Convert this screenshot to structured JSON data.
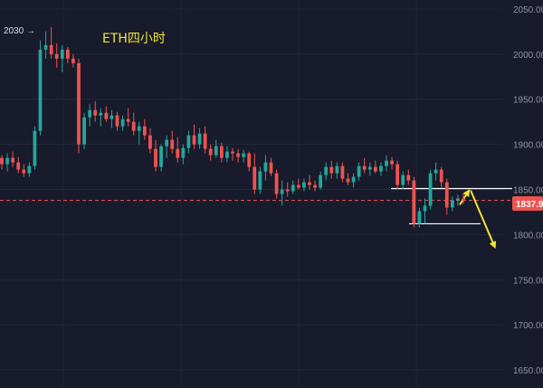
{
  "chart_data": {
    "type": "candlestick",
    "title": "ETH四小时",
    "y_axis_position": "right",
    "ylim": [
      1630,
      2060
    ],
    "y_ticks": [
      "2050.00",
      "2000.00",
      "1950.00",
      "1900.00",
      "1850.00",
      "1800.00",
      "1750.00",
      "1700.00",
      "1650.00"
    ],
    "high_marker": {
      "label": "2030 →",
      "value": 2030
    },
    "current_price": {
      "label": "1837.9",
      "value": 1837.9
    },
    "annotations": {
      "resistance_level": 1851,
      "support_level": 1812,
      "arrows": [
        "up",
        "down"
      ]
    },
    "colors": {
      "up": "#26a69a",
      "down": "#ef5350",
      "title": "#f4e235",
      "price_line": "#ef5350",
      "background": "#171b2b"
    },
    "candles": [
      [
        1885,
        1888,
        1872,
        1878
      ],
      [
        1878,
        1890,
        1870,
        1885
      ],
      [
        1885,
        1892,
        1875,
        1880
      ],
      [
        1880,
        1886,
        1868,
        1872
      ],
      [
        1872,
        1878,
        1864,
        1868
      ],
      [
        1868,
        1880,
        1864,
        1876
      ],
      [
        1876,
        1920,
        1872,
        1915
      ],
      [
        1915,
        2015,
        1910,
        2005
      ],
      [
        2005,
        2025,
        1995,
        2010
      ],
      [
        2010,
        2030,
        1995,
        2000
      ],
      [
        2000,
        2012,
        1985,
        1995
      ],
      [
        1995,
        2010,
        1980,
        2005
      ],
      [
        2005,
        2008,
        1990,
        1995
      ],
      [
        1995,
        2000,
        1985,
        1990
      ],
      [
        1990,
        1995,
        1890,
        1900
      ],
      [
        1900,
        1935,
        1895,
        1930
      ],
      [
        1930,
        1945,
        1920,
        1938
      ],
      [
        1938,
        1948,
        1925,
        1932
      ],
      [
        1932,
        1940,
        1920,
        1935
      ],
      [
        1935,
        1942,
        1925,
        1928
      ],
      [
        1928,
        1938,
        1918,
        1932
      ],
      [
        1932,
        1936,
        1915,
        1920
      ],
      [
        1920,
        1932,
        1915,
        1928
      ],
      [
        1928,
        1940,
        1920,
        1925
      ],
      [
        1925,
        1935,
        1910,
        1915
      ],
      [
        1915,
        1925,
        1900,
        1920
      ],
      [
        1920,
        1928,
        1905,
        1910
      ],
      [
        1910,
        1918,
        1890,
        1895
      ],
      [
        1895,
        1905,
        1870,
        1875
      ],
      [
        1875,
        1900,
        1870,
        1898
      ],
      [
        1898,
        1910,
        1885,
        1905
      ],
      [
        1905,
        1915,
        1890,
        1895
      ],
      [
        1895,
        1908,
        1880,
        1885
      ],
      [
        1885,
        1900,
        1878,
        1896
      ],
      [
        1896,
        1915,
        1890,
        1910
      ],
      [
        1910,
        1922,
        1895,
        1900
      ],
      [
        1900,
        1918,
        1895,
        1912
      ],
      [
        1912,
        1920,
        1890,
        1895
      ],
      [
        1895,
        1900,
        1882,
        1888
      ],
      [
        1888,
        1905,
        1885,
        1898
      ],
      [
        1898,
        1902,
        1880,
        1885
      ],
      [
        1885,
        1898,
        1880,
        1892
      ],
      [
        1892,
        1896,
        1882,
        1890
      ],
      [
        1890,
        1895,
        1880,
        1886
      ],
      [
        1886,
        1894,
        1880,
        1890
      ],
      [
        1890,
        1892,
        1870,
        1875
      ],
      [
        1875,
        1890,
        1845,
        1850
      ],
      [
        1850,
        1875,
        1845,
        1870
      ],
      [
        1870,
        1888,
        1860,
        1880
      ],
      [
        1880,
        1885,
        1865,
        1868
      ],
      [
        1868,
        1872,
        1840,
        1845
      ],
      [
        1845,
        1860,
        1832,
        1850
      ],
      [
        1850,
        1858,
        1842,
        1848
      ],
      [
        1848,
        1860,
        1845,
        1855
      ],
      [
        1855,
        1862,
        1850,
        1852
      ],
      [
        1852,
        1862,
        1848,
        1858
      ],
      [
        1858,
        1866,
        1850,
        1855
      ],
      [
        1855,
        1860,
        1848,
        1852
      ],
      [
        1852,
        1870,
        1850,
        1866
      ],
      [
        1866,
        1880,
        1860,
        1875
      ],
      [
        1875,
        1882,
        1862,
        1868
      ],
      [
        1868,
        1880,
        1862,
        1876
      ],
      [
        1876,
        1880,
        1858,
        1862
      ],
      [
        1862,
        1868,
        1855,
        1858
      ],
      [
        1858,
        1868,
        1852,
        1864
      ],
      [
        1864,
        1880,
        1860,
        1876
      ],
      [
        1876,
        1885,
        1868,
        1872
      ],
      [
        1872,
        1880,
        1865,
        1875
      ],
      [
        1875,
        1882,
        1868,
        1870
      ],
      [
        1870,
        1880,
        1865,
        1876
      ],
      [
        1876,
        1888,
        1870,
        1882
      ],
      [
        1882,
        1886,
        1872,
        1878
      ],
      [
        1878,
        1882,
        1850,
        1855
      ],
      [
        1855,
        1870,
        1850,
        1866
      ],
      [
        1866,
        1872,
        1855,
        1860
      ],
      [
        1860,
        1864,
        1808,
        1812
      ],
      [
        1812,
        1830,
        1808,
        1826
      ],
      [
        1826,
        1840,
        1812,
        1832
      ],
      [
        1832,
        1872,
        1828,
        1868
      ],
      [
        1868,
        1880,
        1860,
        1872
      ],
      [
        1872,
        1875,
        1852,
        1858
      ],
      [
        1858,
        1862,
        1822,
        1830
      ],
      [
        1830,
        1842,
        1826,
        1838
      ],
      [
        1838,
        1844,
        1832,
        1840
      ],
      [
        1840,
        1846,
        1834,
        1838
      ]
    ]
  }
}
